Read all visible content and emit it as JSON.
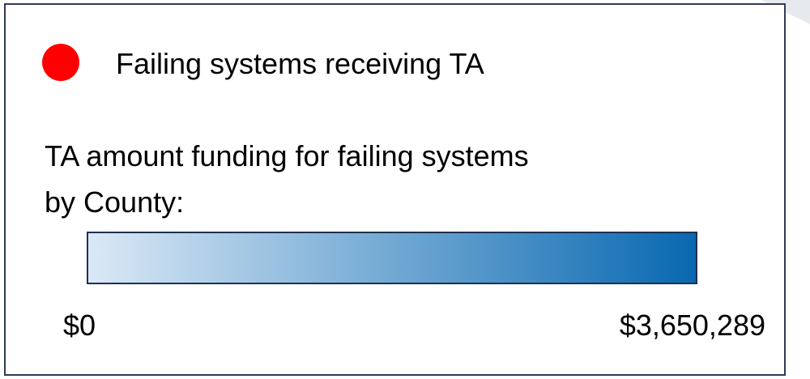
{
  "legend": {
    "point_item": {
      "label": "Failing systems receiving TA",
      "color": "#ff0000"
    },
    "color_scale": {
      "title_lines": [
        "TA amount funding for failing systems",
        "by County:"
      ],
      "min_label": "$0",
      "max_label": "$3,650,289",
      "colors": [
        "#dbe9f6",
        "#0868b0"
      ]
    }
  }
}
